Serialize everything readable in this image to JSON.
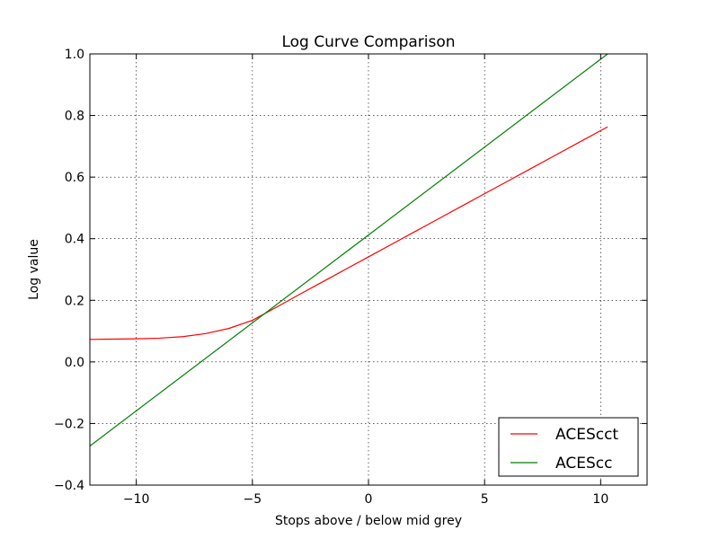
{
  "chart_data": {
    "type": "line",
    "title": "Log Curve Comparison",
    "xlabel": "Stops above / below mid grey",
    "ylabel": "Log value",
    "xlim": [
      -12,
      12
    ],
    "ylim": [
      -0.4,
      1.0
    ],
    "xticks": [
      -10,
      -5,
      0,
      5,
      10
    ],
    "xtick_labels": [
      "−10",
      "−5",
      "0",
      "5",
      "10"
    ],
    "yticks": [
      -0.4,
      -0.2,
      0.0,
      0.2,
      0.4,
      0.6,
      0.8,
      1.0
    ],
    "ytick_labels": [
      "−0.4",
      "−0.2",
      "0.0",
      "0.2",
      "0.4",
      "0.6",
      "0.8",
      "1.0"
    ],
    "grid": true,
    "legend_position": "bottom-right",
    "series": [
      {
        "name": "ACEScct",
        "color": "#ff0000",
        "x": [
          -12,
          -11,
          -10,
          -9,
          -8,
          -7,
          -6,
          -5,
          -4,
          -3,
          -2,
          -1,
          0,
          1,
          2,
          3,
          4,
          5,
          6,
          7,
          8,
          9,
          10,
          10.3
        ],
        "y": [
          0.073,
          0.074,
          0.075,
          0.077,
          0.082,
          0.092,
          0.109,
          0.135,
          0.176,
          0.218,
          0.259,
          0.3,
          0.341,
          0.382,
          0.423,
          0.464,
          0.505,
          0.546,
          0.587,
          0.628,
          0.669,
          0.71,
          0.751,
          0.763
        ]
      },
      {
        "name": "ACEScc",
        "color": "#008000",
        "x": [
          -12,
          10.3
        ],
        "y": [
          -0.273,
          1.0
        ]
      }
    ]
  }
}
